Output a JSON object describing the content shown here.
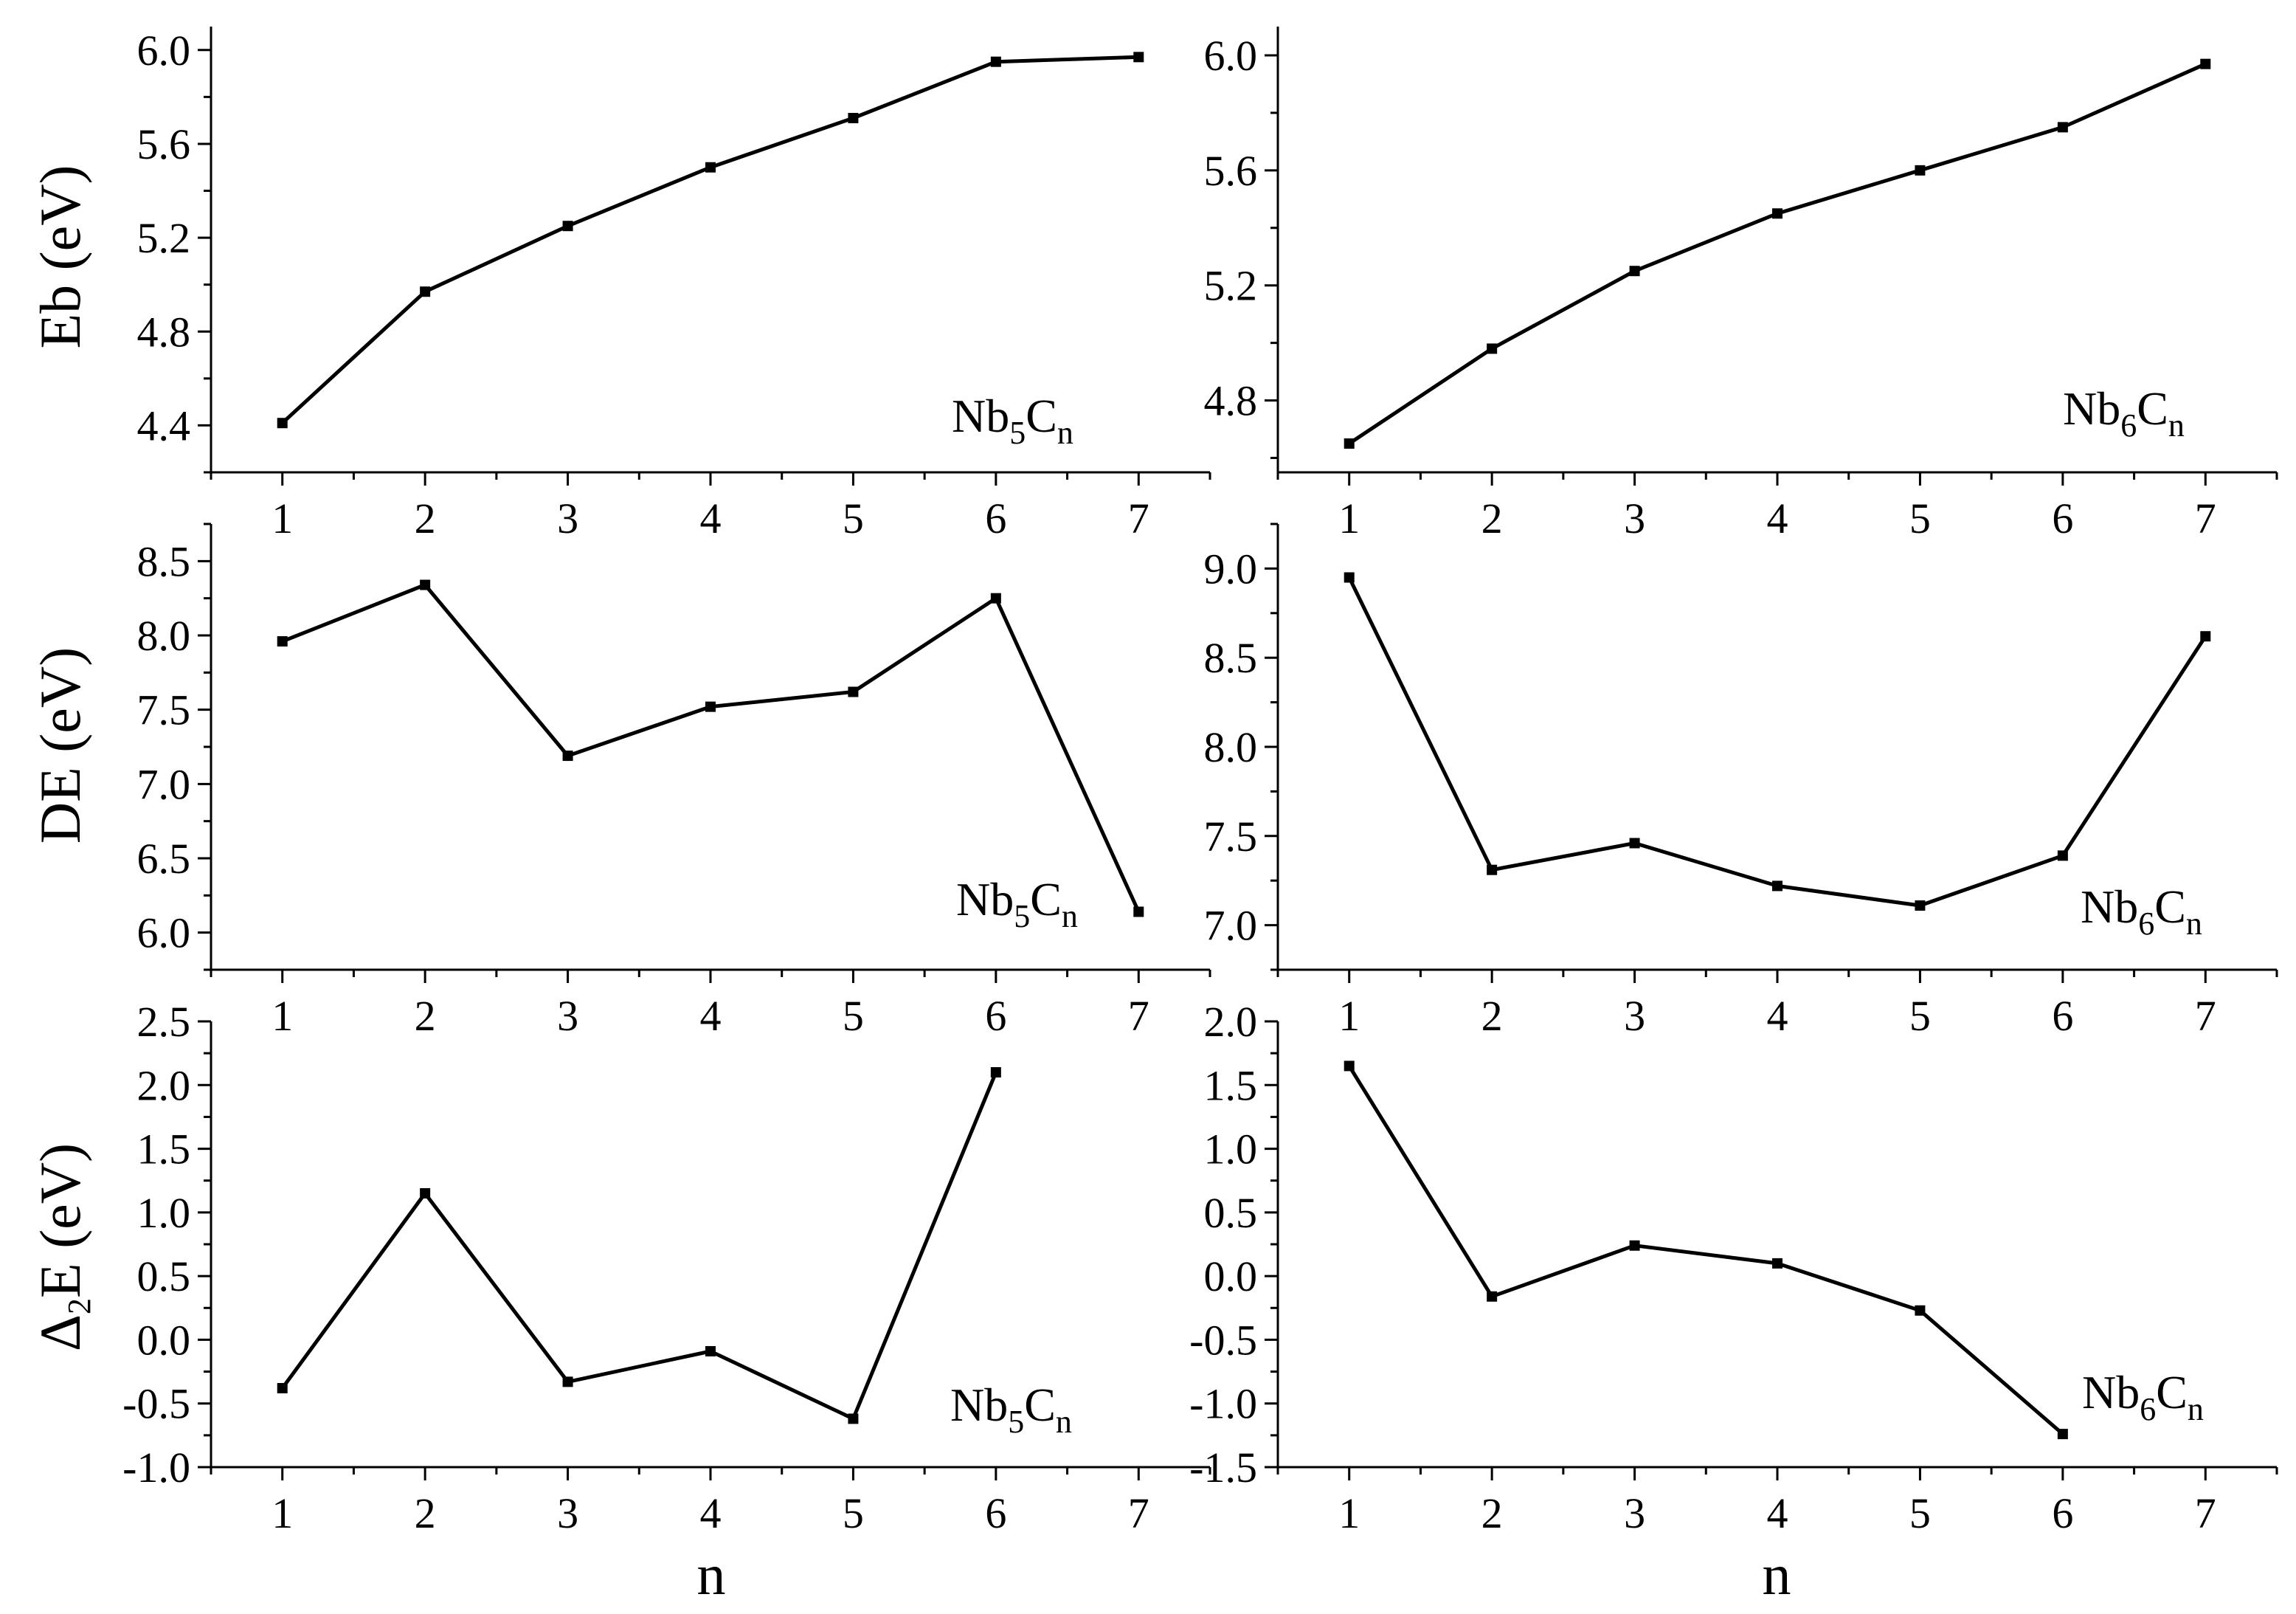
{
  "x_axis_title": "n",
  "y_axis_titles": {
    "eb": "Eb (eV)",
    "de": "DE (eV)",
    "d2e_symbol": "Δ",
    "d2e_sub": "2",
    "d2e_rest": "E (eV)"
  },
  "panel_labels": {
    "nb5": {
      "main": "Nb",
      "sub1": "5",
      "mid": "C",
      "sub2": "n"
    },
    "nb6": {
      "main": "Nb",
      "sub1": "6",
      "mid": "C",
      "sub2": "n"
    }
  },
  "chart_data": [
    {
      "id": "eb-nb5",
      "type": "line",
      "series": [
        {
          "x": [
            1,
            2,
            3,
            4,
            5,
            6,
            7
          ],
          "values": [
            4.41,
            4.97,
            5.25,
            5.5,
            5.71,
            5.95,
            5.97
          ]
        }
      ],
      "xlim": [
        0.5,
        7.5
      ],
      "ylim": [
        4.2,
        6.1
      ],
      "yticks": [
        4.4,
        4.8,
        5.2,
        5.6,
        6.0
      ],
      "ytick_labels": [
        "4.4",
        "4.8",
        "5.2",
        "5.6",
        "6.0"
      ],
      "xticks": [
        1,
        2,
        3,
        4,
        5,
        6,
        7
      ],
      "xtick_labels": [
        "1",
        "2",
        "3",
        "4",
        "5",
        "6",
        "7"
      ]
    },
    {
      "id": "eb-nb6",
      "type": "line",
      "series": [
        {
          "x": [
            1,
            2,
            3,
            4,
            5,
            6,
            7
          ],
          "values": [
            4.65,
            4.98,
            5.25,
            5.45,
            5.6,
            5.75,
            5.97
          ]
        }
      ],
      "xlim": [
        0.5,
        7.5
      ],
      "ylim": [
        4.55,
        6.1
      ],
      "yticks": [
        4.8,
        5.2,
        5.6,
        6.0
      ],
      "ytick_labels": [
        "4.8",
        "5.2",
        "5.6",
        "6.0"
      ],
      "xticks": [
        1,
        2,
        3,
        4,
        5,
        6,
        7
      ],
      "xtick_labels": [
        "1",
        "2",
        "3",
        "4",
        "5",
        "6",
        "7"
      ]
    },
    {
      "id": "de-nb5",
      "type": "line",
      "series": [
        {
          "x": [
            1,
            2,
            3,
            4,
            5,
            6,
            7
          ],
          "values": [
            7.96,
            8.34,
            7.19,
            7.52,
            7.62,
            8.25,
            6.14
          ]
        }
      ],
      "xlim": [
        0.5,
        7.5
      ],
      "ylim": [
        5.75,
        8.75
      ],
      "yticks": [
        6.0,
        6.5,
        7.0,
        7.5,
        8.0,
        8.5
      ],
      "ytick_labels": [
        "6.0",
        "6.5",
        "7.0",
        "7.5",
        "8.0",
        "8.5"
      ],
      "xticks": [
        1,
        2,
        3,
        4,
        5,
        6,
        7
      ],
      "xtick_labels": [
        "1",
        "2",
        "3",
        "4",
        "5",
        "6",
        "7"
      ]
    },
    {
      "id": "de-nb6",
      "type": "line",
      "series": [
        {
          "x": [
            1,
            2,
            3,
            4,
            5,
            6,
            7
          ],
          "values": [
            8.95,
            7.31,
            7.46,
            7.22,
            7.11,
            7.39,
            8.62
          ]
        }
      ],
      "xlim": [
        0.5,
        7.5
      ],
      "ylim": [
        6.75,
        9.25
      ],
      "yticks": [
        7.0,
        7.5,
        8.0,
        8.5,
        9.0
      ],
      "ytick_labels": [
        "7.0",
        "7.5",
        "8.0",
        "8.5",
        "9.0"
      ],
      "xticks": [
        1,
        2,
        3,
        4,
        5,
        6,
        7
      ],
      "xtick_labels": [
        "1",
        "2",
        "3",
        "4",
        "5",
        "6",
        "7"
      ]
    },
    {
      "id": "d2e-nb5",
      "type": "line",
      "series": [
        {
          "x": [
            1,
            2,
            3,
            4,
            5,
            6
          ],
          "values": [
            -0.38,
            1.15,
            -0.33,
            -0.09,
            -0.62,
            2.1
          ]
        }
      ],
      "xlim": [
        0.5,
        7.5
      ],
      "ylim": [
        -1.0,
        2.5
      ],
      "yticks": [
        -1.0,
        -0.5,
        0.0,
        0.5,
        1.0,
        1.5,
        2.0,
        2.5
      ],
      "ytick_labels": [
        "-1.0",
        "-0.5",
        "0.0",
        "0.5",
        "1.0",
        "1.5",
        "2.0",
        "2.5"
      ],
      "xticks": [
        1,
        2,
        3,
        4,
        5,
        6,
        7
      ],
      "xtick_labels": [
        "1",
        "2",
        "3",
        "4",
        "5",
        "6",
        "7"
      ]
    },
    {
      "id": "d2e-nb6",
      "type": "line",
      "series": [
        {
          "x": [
            1,
            2,
            3,
            4,
            5,
            6
          ],
          "values": [
            1.65,
            -0.16,
            0.24,
            0.1,
            -0.27,
            -1.24
          ]
        }
      ],
      "xlim": [
        0.5,
        7.5
      ],
      "ylim": [
        -1.5,
        2.0
      ],
      "yticks": [
        -1.5,
        -1.0,
        -0.5,
        0.0,
        0.5,
        1.0,
        1.5,
        2.0
      ],
      "ytick_labels": [
        "-1.5",
        "-1.0",
        "-0.5",
        "0.0",
        "0.5",
        "1.0",
        "1.5",
        "2.0"
      ],
      "xticks": [
        1,
        2,
        3,
        4,
        5,
        6,
        7
      ],
      "xtick_labels": [
        "1",
        "2",
        "3",
        "4",
        "5",
        "6",
        "7"
      ]
    }
  ]
}
